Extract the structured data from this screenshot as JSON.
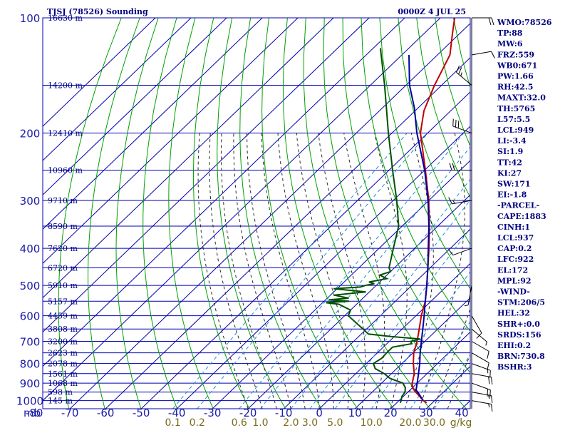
{
  "header": {
    "station": "TJSJ (78526) Sounding",
    "time": "0000Z  4 JUL 25"
  },
  "colors": {
    "grid": "#0000b0",
    "dry_adiabat": "#00a000",
    "moist_adiabat": "#2a2a2a",
    "mixing_ratio": "#2090d0",
    "temperature": "#c00000",
    "dewpoint": "#005000",
    "parcel": "#0000a0",
    "wind": "#000000"
  },
  "chart_data": {
    "type": "line",
    "subtype": "skew-t log-p sounding",
    "xlabel": "",
    "ylabel": "mb",
    "ylim": [
      1050,
      100
    ],
    "xlim": [
      -80,
      40
    ],
    "y_scale": "log",
    "pressure_ticks": [
      "100",
      "200",
      "300",
      "400",
      "500",
      "600",
      "700",
      "800",
      "900",
      "1000"
    ],
    "pressure_unit": "mb",
    "temperature_ticks": [
      "-80",
      "-70",
      "-60",
      "-50",
      "-40",
      "-30",
      "-20",
      "-10",
      "0",
      "10",
      "20",
      "30",
      "40"
    ],
    "mixing_ratio_ticks": [
      "0.1",
      "0.2",
      "0.6",
      "1.0",
      "2.0",
      "3.0",
      "5.0",
      "10.0",
      "20.0",
      "30.0"
    ],
    "mixing_ratio_unit": "g/kg",
    "height_labels": [
      {
        "p": 100,
        "label": "16630 m"
      },
      {
        "p": 150,
        "label": "14200 m"
      },
      {
        "p": 200,
        "label": "12410 m"
      },
      {
        "p": 250,
        "label": "10960 m"
      },
      {
        "p": 300,
        "label": "9710 m"
      },
      {
        "p": 350,
        "label": "8590 m"
      },
      {
        "p": 400,
        "label": "7620 m"
      },
      {
        "p": 450,
        "label": "6720 m"
      },
      {
        "p": 500,
        "label": "5910 m"
      },
      {
        "p": 550,
        "label": "5157 m"
      },
      {
        "p": 600,
        "label": "4459 m"
      },
      {
        "p": 650,
        "label": "3808 m"
      },
      {
        "p": 700,
        "label": "3200 m"
      },
      {
        "p": 750,
        "label": "2623 m"
      },
      {
        "p": 800,
        "label": "2078 m"
      },
      {
        "p": 850,
        "label": "1561 m"
      },
      {
        "p": 900,
        "label": "1068 m"
      },
      {
        "p": 950,
        "label": "598 m"
      },
      {
        "p": 1000,
        "label": "145 m"
      }
    ],
    "series": [
      {
        "key": "temperature",
        "points": [
          [
            1013,
            28.4
          ],
          [
            1000,
            26.8
          ],
          [
            975,
            24.6
          ],
          [
            950,
            22.2
          ],
          [
            925,
            20.0
          ],
          [
            900,
            18.6
          ],
          [
            850,
            16.4
          ],
          [
            800,
            13.2
          ],
          [
            750,
            10.2
          ],
          [
            700,
            7.8
          ],
          [
            650,
            4.8
          ],
          [
            600,
            1.5
          ],
          [
            550,
            -1.6
          ],
          [
            500,
            -5.8
          ],
          [
            450,
            -10.6
          ],
          [
            400,
            -16.0
          ],
          [
            350,
            -22.4
          ],
          [
            300,
            -30.0
          ],
          [
            250,
            -39.8
          ],
          [
            200,
            -52.0
          ],
          [
            175,
            -57.5
          ],
          [
            150,
            -62.0
          ],
          [
            125,
            -66.5
          ],
          [
            110,
            -72.0
          ],
          [
            100,
            -76.0
          ]
        ]
      },
      {
        "key": "dewpoint",
        "points": [
          [
            1013,
            21.0
          ],
          [
            1000,
            20.6
          ],
          [
            975,
            19.6
          ],
          [
            950,
            19.2
          ],
          [
            925,
            18.0
          ],
          [
            900,
            16.0
          ],
          [
            875,
            11.0
          ],
          [
            850,
            8.0
          ],
          [
            825,
            4.0
          ],
          [
            800,
            2.0
          ],
          [
            775,
            2.8
          ],
          [
            750,
            2.6
          ],
          [
            725,
            2.6
          ],
          [
            710,
            7.0
          ],
          [
            700,
            6.0
          ],
          [
            690,
            8.0
          ],
          [
            680,
            -1.0
          ],
          [
            670,
            -8.0
          ],
          [
            650,
            -11.0
          ],
          [
            600,
            -19.0
          ],
          [
            580,
            -20.0
          ],
          [
            560,
            -25.0
          ],
          [
            555,
            -29.0
          ],
          [
            550,
            -23.0
          ],
          [
            545,
            -29.0
          ],
          [
            540,
            -24.0
          ],
          [
            530,
            -29.0
          ],
          [
            520,
            -21.0
          ],
          [
            510,
            -31.0
          ],
          [
            505,
            -24.0
          ],
          [
            500,
            -23.0
          ],
          [
            495,
            -21.0
          ],
          [
            490,
            -23.0
          ],
          [
            480,
            -19.0
          ],
          [
            470,
            -22.0
          ],
          [
            460,
            -20.0
          ],
          [
            450,
            -21.5
          ],
          [
            400,
            -26.0
          ],
          [
            350,
            -31.0
          ],
          [
            300,
            -39.0
          ],
          [
            250,
            -49.0
          ],
          [
            200,
            -61.0
          ],
          [
            150,
            -76.0
          ],
          [
            120,
            -88.0
          ]
        ]
      },
      {
        "key": "parcel",
        "points": [
          [
            1000,
            26.8
          ],
          [
            950,
            22.8
          ],
          [
            937,
            21.6
          ],
          [
            922,
            21.0
          ],
          [
            900,
            20.0
          ],
          [
            850,
            17.6
          ],
          [
            800,
            15.0
          ],
          [
            750,
            12.0
          ],
          [
            700,
            9.0
          ],
          [
            650,
            5.8
          ],
          [
            600,
            2.3
          ],
          [
            550,
            -1.6
          ],
          [
            500,
            -5.8
          ],
          [
            450,
            -10.6
          ],
          [
            400,
            -16.2
          ],
          [
            350,
            -22.5
          ],
          [
            300,
            -30.2
          ],
          [
            250,
            -40.0
          ],
          [
            200,
            -53.0
          ],
          [
            172,
            -61.0
          ],
          [
            150,
            -69.0
          ],
          [
            125,
            -78.0
          ]
        ]
      }
    ],
    "wind_barbs": [
      {
        "p": 1000,
        "dir": 100,
        "spd": 15
      },
      {
        "p": 950,
        "dir": 100,
        "spd": 15
      },
      {
        "p": 900,
        "dir": 110,
        "spd": 20
      },
      {
        "p": 850,
        "dir": 100,
        "spd": 20
      },
      {
        "p": 800,
        "dir": 110,
        "spd": 15
      },
      {
        "p": 750,
        "dir": 120,
        "spd": 10
      },
      {
        "p": 700,
        "dir": 120,
        "spd": 10
      },
      {
        "p": 650,
        "dir": 130,
        "spd": 5
      },
      {
        "p": 600,
        "dir": 150,
        "spd": 10
      },
      {
        "p": 500,
        "dir": 190,
        "spd": 5
      },
      {
        "p": 400,
        "dir": 250,
        "spd": 10
      },
      {
        "p": 300,
        "dir": 260,
        "spd": 15
      },
      {
        "p": 250,
        "dir": 270,
        "spd": 20
      },
      {
        "p": 200,
        "dir": 290,
        "spd": 30
      },
      {
        "p": 150,
        "dir": 310,
        "spd": 25
      },
      {
        "p": 125,
        "dir": 80,
        "spd": 10
      },
      {
        "p": 100,
        "dir": 90,
        "spd": 20
      }
    ]
  },
  "indices": [
    "WMO:78526",
    "TP:88",
    "MW:6",
    "FRZ:559",
    "WB0:671",
    "PW:1.66",
    "RH:42.5",
    "MAXT:32.0",
    "TH:5765",
    "L57:5.5",
    "LCL:949",
    "LI:-3.4",
    "SI:1.9",
    "TT:42",
    "KI:27",
    "SW:171",
    "EI:-1.8",
    "-PARCEL-",
    "CAPE:1883",
    "CINH:1",
    "LCL:937",
    "CAP:0.2",
    "LFC:922",
    "EL:172",
    "MPL:92",
    "-WIND-",
    "STM:206/5",
    "HEL:32",
    "SHR+:0.0",
    "SRDS:156",
    "EHI:0.2",
    "BRN:730.8",
    "BSHR:3"
  ]
}
